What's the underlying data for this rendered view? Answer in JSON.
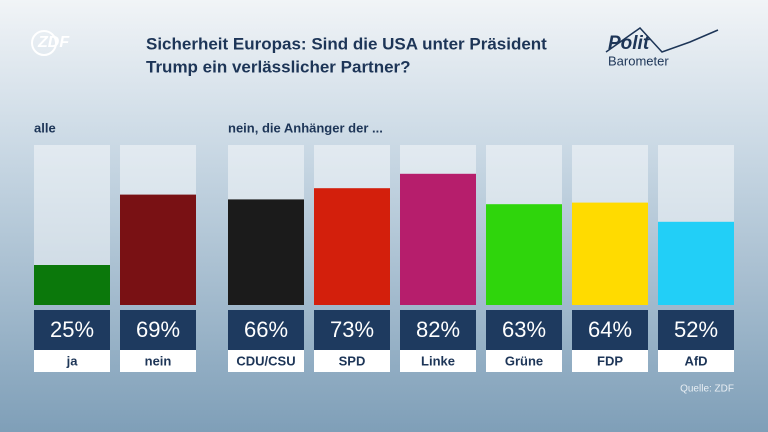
{
  "chart_data": {
    "type": "bar",
    "title": [
      "Sicherheit Europas: Sind die USA unter Präsident",
      "Trump ein verlässlicher Partner?"
    ],
    "logo": "ZDF",
    "brand": [
      "Polit",
      "Barometer"
    ],
    "group_labels": [
      "alle",
      "nein, die Anhänger der ..."
    ],
    "categories": [
      "ja",
      "nein",
      "CDU/CSU",
      "SPD",
      "Linke",
      "Grüne",
      "FDP",
      "AfD"
    ],
    "values": [
      25,
      69,
      66,
      73,
      82,
      63,
      64,
      52
    ],
    "value_labels": [
      "25%",
      "69%",
      "66%",
      "73%",
      "82%",
      "63%",
      "64%",
      "52%"
    ],
    "colors": [
      "#0b780b",
      "#791114",
      "#1b1b1b",
      "#d31f0c",
      "#b61e6c",
      "#2fd50c",
      "#ffdb00",
      "#22cff7"
    ],
    "ylim": [
      0,
      100
    ],
    "source": "Quelle: ZDF"
  }
}
